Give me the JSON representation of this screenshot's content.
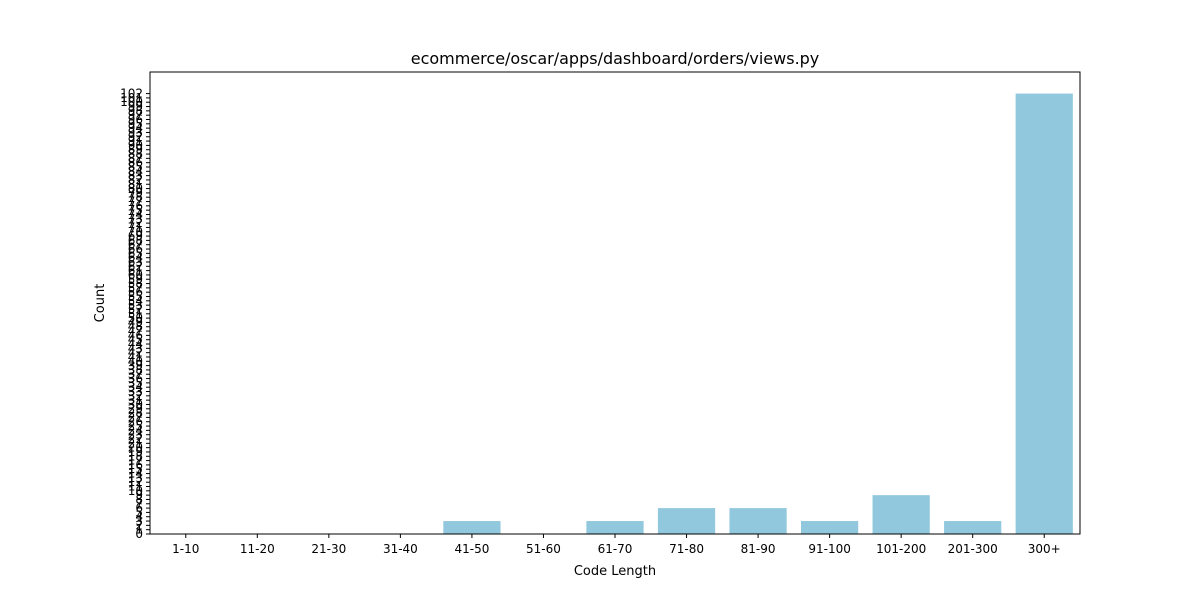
{
  "chart_data": {
    "type": "bar",
    "title": "ecommerce/oscar/apps/dashboard/orders/views.py",
    "xlabel": "Code Length",
    "ylabel": "Count",
    "categories": [
      "1-10",
      "11-20",
      "21-30",
      "31-40",
      "41-50",
      "51-60",
      "61-70",
      "71-80",
      "81-90",
      "91-100",
      "101-200",
      "201-300",
      "300+"
    ],
    "values": [
      0,
      0,
      0,
      0,
      3,
      0,
      3,
      6,
      6,
      3,
      9,
      3,
      102
    ],
    "yticks": [
      0,
      1,
      2,
      3,
      4,
      5,
      6,
      7,
      8,
      9,
      10,
      11,
      12,
      13,
      14,
      15,
      16,
      17,
      18,
      19,
      20,
      21,
      22,
      23,
      24,
      25,
      26,
      27,
      28,
      29,
      30,
      31,
      32,
      33,
      34,
      35,
      36,
      37,
      38,
      39,
      40,
      41,
      42,
      43,
      44,
      45,
      46,
      47,
      48,
      49,
      50,
      51,
      52,
      53,
      54,
      55,
      56,
      57,
      58,
      59,
      60,
      61,
      62,
      63,
      64,
      65,
      66,
      67,
      68,
      69,
      70,
      71,
      72,
      73,
      74,
      75,
      76,
      77,
      78,
      79,
      80,
      81,
      82,
      83,
      84,
      85,
      86,
      87,
      88,
      89,
      90,
      91,
      92,
      93,
      94,
      95,
      96,
      97,
      98,
      99,
      100,
      101,
      102
    ],
    "ylim": [
      0,
      107
    ],
    "grid": false,
    "bar_color": "#92c8de"
  }
}
